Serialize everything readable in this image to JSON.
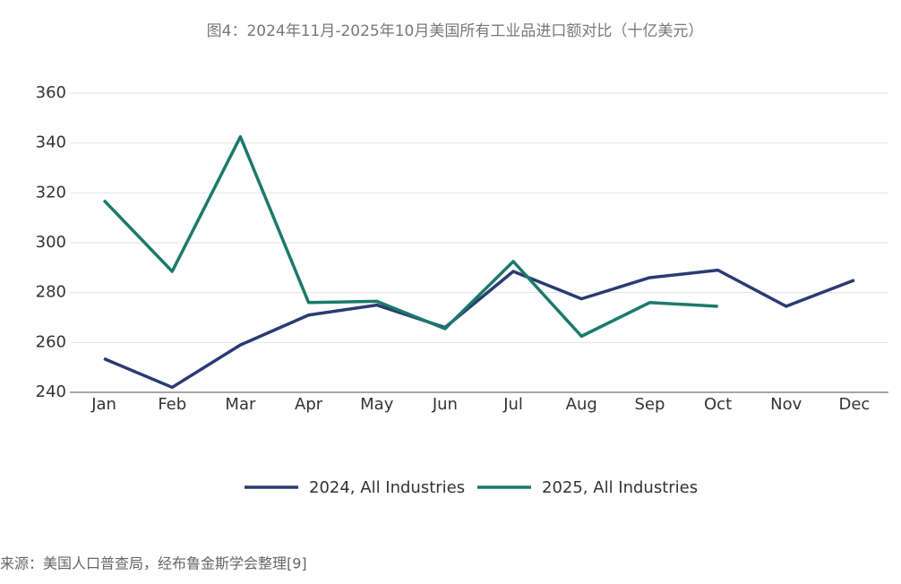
{
  "chart_data": {
    "type": "line",
    "title": "图4：2024年11月-2025年10月美国所有工业品进口额对比（十亿美元）",
    "categories": [
      "Jan",
      "Feb",
      "Mar",
      "Apr",
      "May",
      "Jun",
      "Jul",
      "Aug",
      "Sep",
      "Oct",
      "Nov",
      "Dec"
    ],
    "series": [
      {
        "name": "2024, All Industries",
        "color": "#2b3a72",
        "values": [
          253.5,
          242,
          259,
          271,
          275,
          266,
          288.5,
          277.5,
          286,
          289,
          274.5,
          285
        ]
      },
      {
        "name": "2025, All Industries",
        "color": "#1a7a6a",
        "values": [
          317,
          288.5,
          342.5,
          276,
          276.5,
          265.5,
          292.5,
          262.5,
          276,
          274.5,
          null,
          null
        ]
      }
    ],
    "ylim": [
      240,
      360
    ],
    "yticks": [
      240,
      260,
      280,
      300,
      320,
      340,
      360
    ],
    "grid": true,
    "legend": "bottom"
  },
  "source": "来源：美国人口普查局，经布鲁金斯学会整理[9]"
}
